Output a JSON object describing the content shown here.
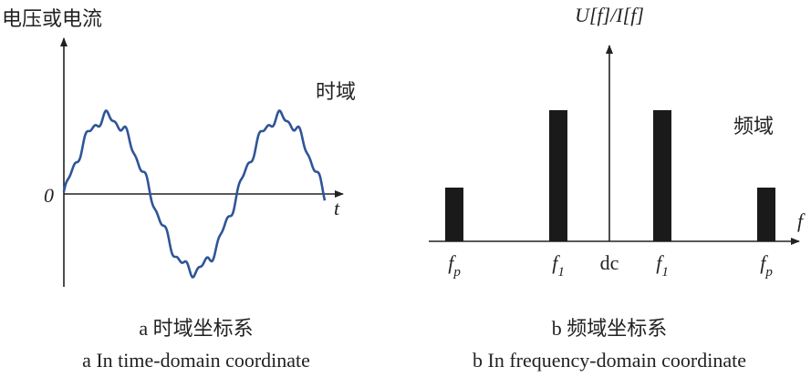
{
  "time_panel": {
    "y_axis_label": "电压或电流",
    "domain_label": "时域",
    "origin_label": "0",
    "x_axis_label": "t",
    "caption_cn": "a 时域坐标系",
    "caption_en": "a In time-domain coordinate"
  },
  "freq_panel": {
    "y_axis_label": "U[f]/I[f]",
    "domain_label": "频域",
    "x_axis_label": "f",
    "tick_labels": [
      {
        "main": "f",
        "sub": "p"
      },
      {
        "main": "f",
        "sub": "1"
      },
      {
        "main": "dc"
      },
      {
        "main": "f",
        "sub": "1"
      },
      {
        "main": "f",
        "sub": "p"
      }
    ],
    "caption_cn": "b 频域坐标系",
    "caption_en": "b In frequency-domain coordinate"
  }
}
